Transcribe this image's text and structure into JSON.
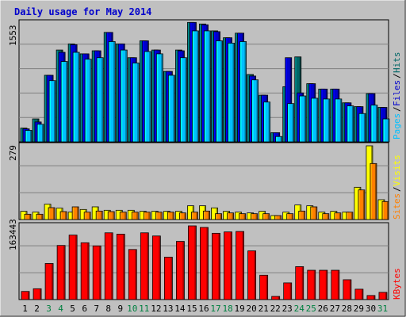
{
  "chart_data": {
    "type": "bar",
    "title": "Daily usage for May 2014",
    "categories": [
      "1",
      "2",
      "3",
      "4",
      "5",
      "6",
      "7",
      "8",
      "9",
      "10",
      "11",
      "12",
      "13",
      "14",
      "15",
      "16",
      "17",
      "18",
      "19",
      "20",
      "21",
      "22",
      "23",
      "24",
      "25",
      "26",
      "27",
      "28",
      "29",
      "30",
      "31"
    ],
    "weekend_days": [
      "3",
      "4",
      "10",
      "11",
      "17",
      "18",
      "24",
      "25",
      "31"
    ],
    "panels": [
      {
        "id": "top",
        "max_label": "1553",
        "ylim": [
          0,
          1553
        ],
        "legend": [
          "Pages",
          "Files",
          "Hits"
        ],
        "series": [
          {
            "name": "Hits",
            "color": "#006666",
            "values": [
              180,
              300,
              870,
              1200,
              1280,
              1150,
              1190,
              1430,
              1280,
              1100,
              1320,
              1200,
              920,
              1200,
              1560,
              1540,
              1450,
              1360,
              1420,
              880,
              610,
              120,
              720,
              1110,
              760,
              690,
              690,
              510,
              460,
              630,
              450
            ]
          },
          {
            "name": "Files",
            "color": "#0000cc",
            "values": [
              170,
              260,
              870,
              1170,
              1270,
              1150,
              1190,
              1430,
              1280,
              1100,
              1320,
              1200,
              920,
              1190,
              1560,
              1530,
              1440,
              1360,
              1420,
              860,
              610,
              120,
              1100,
              640,
              760,
              690,
              690,
              510,
              460,
              630,
              450
            ]
          },
          {
            "name": "Pages",
            "color": "#00c0ff",
            "values": [
              150,
              230,
              800,
              1050,
              1170,
              1080,
              1100,
              1310,
              1200,
              1030,
              1180,
              1150,
              870,
              1100,
              1450,
              1450,
              1320,
              1290,
              1310,
              810,
              520,
              70,
              500,
              600,
              570,
              560,
              560,
              470,
              370,
              480,
              300
            ]
          }
        ]
      },
      {
        "id": "middle",
        "max_label": "279",
        "ylim": [
          0,
          279
        ],
        "legend": [
          "Sites",
          "Visits"
        ],
        "series": [
          {
            "name": "Visits",
            "color": "#ffff00",
            "values": [
              31,
              28,
              58,
              43,
              28,
              38,
              48,
              35,
              35,
              35,
              31,
              31,
              31,
              31,
              52,
              52,
              44,
              31,
              28,
              25,
              31,
              15,
              28,
              55,
              52,
              28,
              31,
              28,
              122,
              279,
              75
            ]
          },
          {
            "name": "Sites",
            "color": "#ff8000",
            "values": [
              20,
              20,
              45,
              30,
              48,
              28,
              32,
              30,
              28,
              28,
              28,
              28,
              28,
              25,
              28,
              32,
              22,
              25,
              22,
              22,
              22,
              15,
              22,
              32,
              48,
              22,
              25,
              28,
              112,
              212,
              68
            ]
          }
        ]
      },
      {
        "id": "bottom",
        "max_label": "163443",
        "ylim": [
          0,
          163443
        ],
        "legend": [
          "KBytes"
        ],
        "series": [
          {
            "name": "KBytes",
            "color": "#ff0000",
            "values": [
              18000,
              24000,
              80000,
              120000,
              143000,
              126000,
              119000,
              148000,
              145000,
              111000,
              148000,
              141000,
              94000,
              129000,
              163443,
              160000,
              147000,
              150000,
              151000,
              108000,
              54000,
              7000,
              37000,
              73000,
              65000,
              65000,
              65000,
              44000,
              23000,
              9000,
              16000
            ]
          }
        ]
      }
    ],
    "colors": {
      "background": "#c0c0c0",
      "title": "#0000cc",
      "tick_weekday": "#000000",
      "tick_weekend": "#008040",
      "gridline": "#808080"
    }
  }
}
